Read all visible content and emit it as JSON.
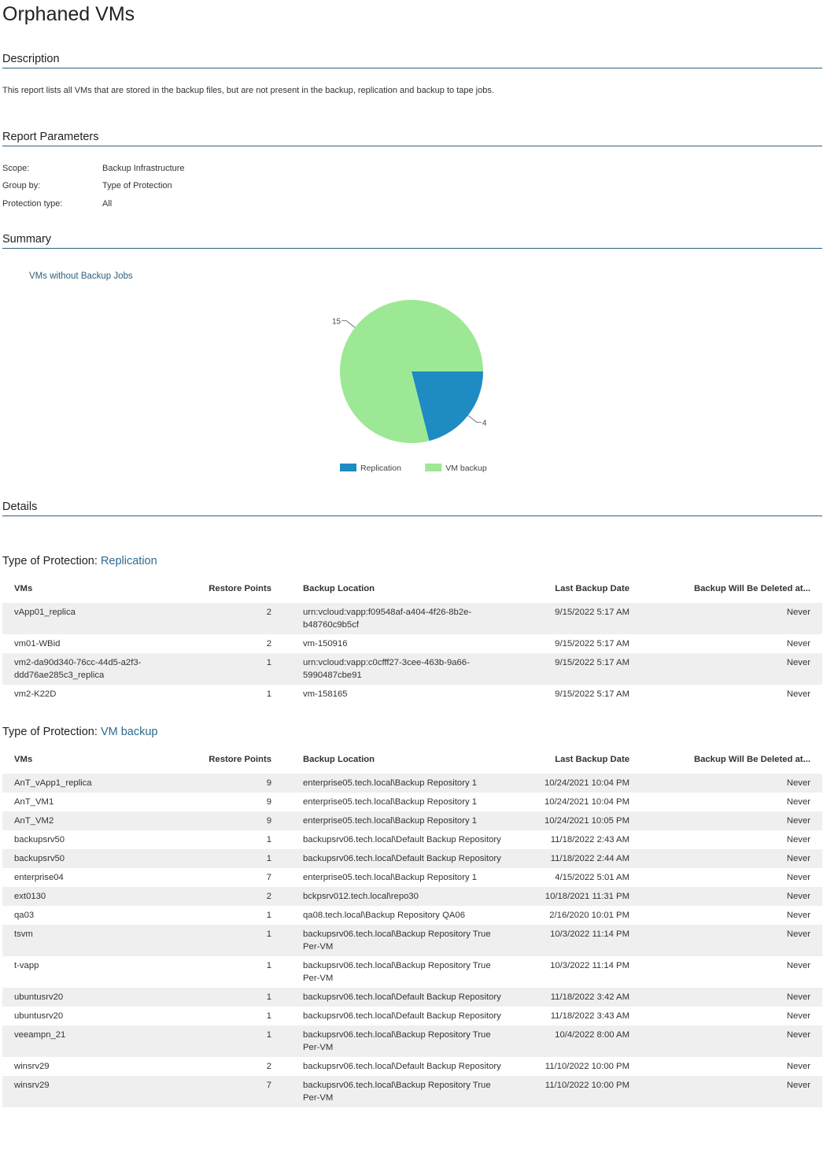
{
  "report": {
    "title": "Orphaned VMs"
  },
  "sections": {
    "description": "Description",
    "parameters": "Report Parameters",
    "summary": "Summary",
    "details": "Details"
  },
  "description_text": "This report lists all VMs that are stored in the backup files, but are not present in the backup, replication and backup to tape jobs.",
  "parameters": [
    {
      "key": "Scope:",
      "value": "Backup Infrastructure"
    },
    {
      "key": "Group by:",
      "value": "Type of Protection"
    },
    {
      "key": "Protection type:",
      "value": "All"
    }
  ],
  "chart_data": {
    "type": "pie",
    "title": "VMs without Backup Jobs",
    "slices": [
      {
        "label": "Replication",
        "value": 4,
        "color": "#1e8bc3"
      },
      {
        "label": "VM backup",
        "value": 15,
        "color": "#9de894"
      }
    ],
    "legend": "bottom"
  },
  "table_headers": [
    "VMs",
    "Restore Points",
    "Backup Location",
    "Last Backup Date",
    "Backup Will Be Deleted at..."
  ],
  "groups": [
    {
      "label": "Type of Protection: ",
      "value": "Replication",
      "rows": [
        [
          "vApp01_replica",
          "2",
          "urn:vcloud:vapp:f09548af-a404-4f26-8b2e-b48760c9b5cf",
          "9/15/2022 5:17 AM",
          "Never"
        ],
        [
          "vm01-WBid",
          "2",
          "vm-150916",
          "9/15/2022 5:17 AM",
          "Never"
        ],
        [
          "vm2-da90d340-76cc-44d5-a2f3-ddd76ae285c3_replica",
          "1",
          "urn:vcloud:vapp:c0cfff27-3cee-463b-9a66-5990487cbe91",
          "9/15/2022 5:17 AM",
          "Never"
        ],
        [
          "vm2-K22D",
          "1",
          "vm-158165",
          "9/15/2022 5:17 AM",
          "Never"
        ]
      ]
    },
    {
      "label": "Type of Protection: ",
      "value": "VM backup",
      "rows": [
        [
          "AnT_vApp1_replica",
          "9",
          "enterprise05.tech.local\\Backup Repository 1",
          "10/24/2021 10:04 PM",
          "Never"
        ],
        [
          "AnT_VM1",
          "9",
          "enterprise05.tech.local\\Backup Repository 1",
          "10/24/2021 10:04 PM",
          "Never"
        ],
        [
          "AnT_VM2",
          "9",
          "enterprise05.tech.local\\Backup Repository 1",
          "10/24/2021 10:05 PM",
          "Never"
        ],
        [
          "backupsrv50",
          "1",
          "backupsrv06.tech.local\\Default Backup Repository",
          "11/18/2022 2:43 AM",
          "Never"
        ],
        [
          "backupsrv50",
          "1",
          "backupsrv06.tech.local\\Default Backup Repository",
          "11/18/2022 2:44 AM",
          "Never"
        ],
        [
          "enterprise04",
          "7",
          "enterprise05.tech.local\\Backup Repository 1",
          "4/15/2022 5:01 AM",
          "Never"
        ],
        [
          "ext0130",
          "2",
          "bckpsrv012.tech.local\\repo30",
          "10/18/2021 11:31 PM",
          "Never"
        ],
        [
          "qa03",
          "1",
          "qa08.tech.local\\Backup Repository QA06",
          "2/16/2020 10:01 PM",
          "Never"
        ],
        [
          "tsvm",
          "1",
          "backupsrv06.tech.local\\Backup Repository True Per-VM",
          "10/3/2022 11:14 PM",
          "Never"
        ],
        [
          "t-vapp",
          "1",
          "backupsrv06.tech.local\\Backup Repository True Per-VM",
          "10/3/2022 11:14 PM",
          "Never"
        ],
        [
          "ubuntusrv20",
          "1",
          "backupsrv06.tech.local\\Default Backup Repository",
          "11/18/2022 3:42 AM",
          "Never"
        ],
        [
          "ubuntusrv20",
          "1",
          "backupsrv06.tech.local\\Default Backup Repository",
          "11/18/2022 3:43 AM",
          "Never"
        ],
        [
          "veeampn_21",
          "1",
          "backupsrv06.tech.local\\Backup Repository True Per-VM",
          "10/4/2022 8:00 AM",
          "Never"
        ],
        [
          "winsrv29",
          "2",
          "backupsrv06.tech.local\\Default Backup Repository",
          "11/10/2022 10:00 PM",
          "Never"
        ],
        [
          "winsrv29",
          "7",
          "backupsrv06.tech.local\\Backup Repository True Per-VM",
          "11/10/2022 10:00 PM",
          "Never"
        ]
      ]
    }
  ]
}
